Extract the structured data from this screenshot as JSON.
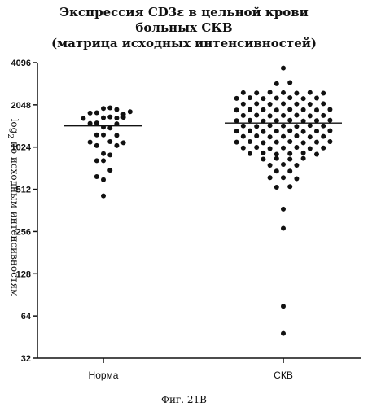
{
  "chart_data": {
    "type": "scatter",
    "title_lines": [
      "Экспрессия CD3ε в цельной крови",
      "больных СКВ",
      "(матрица исходных интенсивностей)"
    ],
    "ylabel_prefix": "log",
    "ylabel_sub": "2",
    "ylabel_rest": " по исходным интенсивностям",
    "y_scale": "log2",
    "ylim": [
      32,
      4096
    ],
    "y_ticks": [
      "4096",
      "2048",
      "1024",
      "512",
      "256",
      "128",
      "64",
      "32"
    ],
    "y_tick_values": [
      4096,
      2048,
      1024,
      512,
      256,
      128,
      64,
      32
    ],
    "categories": [
      "Норма",
      "СКВ"
    ],
    "medians": [
      1450,
      1520
    ],
    "series": [
      {
        "category": "Норма",
        "points": [
          {
            "i": 3,
            "y": 1930
          },
          {
            "i": 4,
            "y": 1950
          },
          {
            "i": 5,
            "y": 1900
          },
          {
            "i": 1,
            "y": 1790
          },
          {
            "i": 2,
            "y": 1800
          },
          {
            "i": 6,
            "y": 1760
          },
          {
            "i": 7,
            "y": 1830
          },
          {
            "i": 0,
            "y": 1640
          },
          {
            "i": 3,
            "y": 1660
          },
          {
            "i": 4,
            "y": 1680
          },
          {
            "i": 5,
            "y": 1650
          },
          {
            "i": 6,
            "y": 1670
          },
          {
            "i": 1,
            "y": 1510
          },
          {
            "i": 2,
            "y": 1520
          },
          {
            "i": 5,
            "y": 1500
          },
          {
            "i": 3,
            "y": 1420
          },
          {
            "i": 4,
            "y": 1400
          },
          {
            "i": 2,
            "y": 1250
          },
          {
            "i": 3,
            "y": 1250
          },
          {
            "i": 5,
            "y": 1240
          },
          {
            "i": 1,
            "y": 1110
          },
          {
            "i": 4,
            "y": 1120
          },
          {
            "i": 6,
            "y": 1100
          },
          {
            "i": 2,
            "y": 1050
          },
          {
            "i": 5,
            "y": 1050
          },
          {
            "i": 3,
            "y": 920
          },
          {
            "i": 4,
            "y": 900
          },
          {
            "i": 2,
            "y": 820
          },
          {
            "i": 3,
            "y": 820
          },
          {
            "i": 4,
            "y": 700
          },
          {
            "i": 2,
            "y": 630
          },
          {
            "i": 3,
            "y": 600
          },
          {
            "i": 3,
            "y": 460
          }
        ]
      },
      {
        "category": "СКВ",
        "points": [
          {
            "i": 0,
            "y": 3750
          },
          {
            "i": -1,
            "y": 2900
          },
          {
            "i": 1,
            "y": 2950
          },
          {
            "i": -6,
            "y": 2500
          },
          {
            "i": -4,
            "y": 2490
          },
          {
            "i": -2,
            "y": 2520
          },
          {
            "i": 0,
            "y": 2500
          },
          {
            "i": 2,
            "y": 2480
          },
          {
            "i": 4,
            "y": 2510
          },
          {
            "i": 6,
            "y": 2480
          },
          {
            "i": -7,
            "y": 2280
          },
          {
            "i": -5,
            "y": 2300
          },
          {
            "i": -3,
            "y": 2270
          },
          {
            "i": -1,
            "y": 2290
          },
          {
            "i": 1,
            "y": 2300
          },
          {
            "i": 3,
            "y": 2270
          },
          {
            "i": 5,
            "y": 2290
          },
          {
            "i": -6,
            "y": 2080
          },
          {
            "i": -4,
            "y": 2090
          },
          {
            "i": -2,
            "y": 2070
          },
          {
            "i": 0,
            "y": 2090
          },
          {
            "i": 2,
            "y": 2080
          },
          {
            "i": 4,
            "y": 2070
          },
          {
            "i": 6,
            "y": 2090
          },
          {
            "i": -7,
            "y": 1880
          },
          {
            "i": -5,
            "y": 1900
          },
          {
            "i": -3,
            "y": 1890
          },
          {
            "i": -1,
            "y": 1880
          },
          {
            "i": 1,
            "y": 1900
          },
          {
            "i": 3,
            "y": 1890
          },
          {
            "i": 5,
            "y": 1880
          },
          {
            "i": 7,
            "y": 1900
          },
          {
            "i": -6,
            "y": 1720
          },
          {
            "i": -4,
            "y": 1730
          },
          {
            "i": -2,
            "y": 1710
          },
          {
            "i": 0,
            "y": 1720
          },
          {
            "i": 2,
            "y": 1730
          },
          {
            "i": 4,
            "y": 1710
          },
          {
            "i": 6,
            "y": 1720
          },
          {
            "i": -7,
            "y": 1580
          },
          {
            "i": -5,
            "y": 1590
          },
          {
            "i": -3,
            "y": 1570
          },
          {
            "i": -1,
            "y": 1580
          },
          {
            "i": 1,
            "y": 1590
          },
          {
            "i": 3,
            "y": 1570
          },
          {
            "i": 5,
            "y": 1580
          },
          {
            "i": 7,
            "y": 1590
          },
          {
            "i": -6,
            "y": 1450
          },
          {
            "i": -4,
            "y": 1440
          },
          {
            "i": -2,
            "y": 1460
          },
          {
            "i": 0,
            "y": 1450
          },
          {
            "i": 2,
            "y": 1440
          },
          {
            "i": 4,
            "y": 1460
          },
          {
            "i": 6,
            "y": 1450
          },
          {
            "i": -7,
            "y": 1330
          },
          {
            "i": -5,
            "y": 1340
          },
          {
            "i": -3,
            "y": 1320
          },
          {
            "i": -1,
            "y": 1330
          },
          {
            "i": 1,
            "y": 1340
          },
          {
            "i": 3,
            "y": 1320
          },
          {
            "i": 5,
            "y": 1330
          },
          {
            "i": 7,
            "y": 1340
          },
          {
            "i": -6,
            "y": 1220
          },
          {
            "i": -4,
            "y": 1230
          },
          {
            "i": -2,
            "y": 1210
          },
          {
            "i": 0,
            "y": 1220
          },
          {
            "i": 2,
            "y": 1230
          },
          {
            "i": 4,
            "y": 1210
          },
          {
            "i": 6,
            "y": 1220
          },
          {
            "i": -7,
            "y": 1110
          },
          {
            "i": -5,
            "y": 1120
          },
          {
            "i": -3,
            "y": 1100
          },
          {
            "i": -1,
            "y": 1110
          },
          {
            "i": 1,
            "y": 1120
          },
          {
            "i": 3,
            "y": 1100
          },
          {
            "i": 5,
            "y": 1110
          },
          {
            "i": 7,
            "y": 1120
          },
          {
            "i": -6,
            "y": 1010
          },
          {
            "i": -4,
            "y": 1020
          },
          {
            "i": -2,
            "y": 1000
          },
          {
            "i": 0,
            "y": 1010
          },
          {
            "i": 2,
            "y": 1020
          },
          {
            "i": 4,
            "y": 1000
          },
          {
            "i": 6,
            "y": 1010
          },
          {
            "i": -5,
            "y": 920
          },
          {
            "i": -3,
            "y": 930
          },
          {
            "i": -1,
            "y": 910
          },
          {
            "i": 1,
            "y": 920
          },
          {
            "i": 3,
            "y": 930
          },
          {
            "i": 5,
            "y": 910
          },
          {
            "i": -3,
            "y": 840
          },
          {
            "i": -1,
            "y": 850
          },
          {
            "i": 1,
            "y": 840
          },
          {
            "i": 3,
            "y": 850
          },
          {
            "i": -2,
            "y": 760
          },
          {
            "i": 0,
            "y": 770
          },
          {
            "i": 2,
            "y": 760
          },
          {
            "i": -1,
            "y": 690
          },
          {
            "i": 1,
            "y": 690
          },
          {
            "i": -2,
            "y": 620
          },
          {
            "i": 0,
            "y": 620
          },
          {
            "i": 2,
            "y": 610
          },
          {
            "i": -1,
            "y": 530
          },
          {
            "i": 1,
            "y": 535
          },
          {
            "i": 0,
            "y": 370
          },
          {
            "i": 0,
            "y": 270
          },
          {
            "i": 0,
            "y": 75
          },
          {
            "i": 0,
            "y": 48
          }
        ]
      }
    ],
    "grid": false,
    "legend": "none"
  },
  "caption": "Фиг. 21В"
}
